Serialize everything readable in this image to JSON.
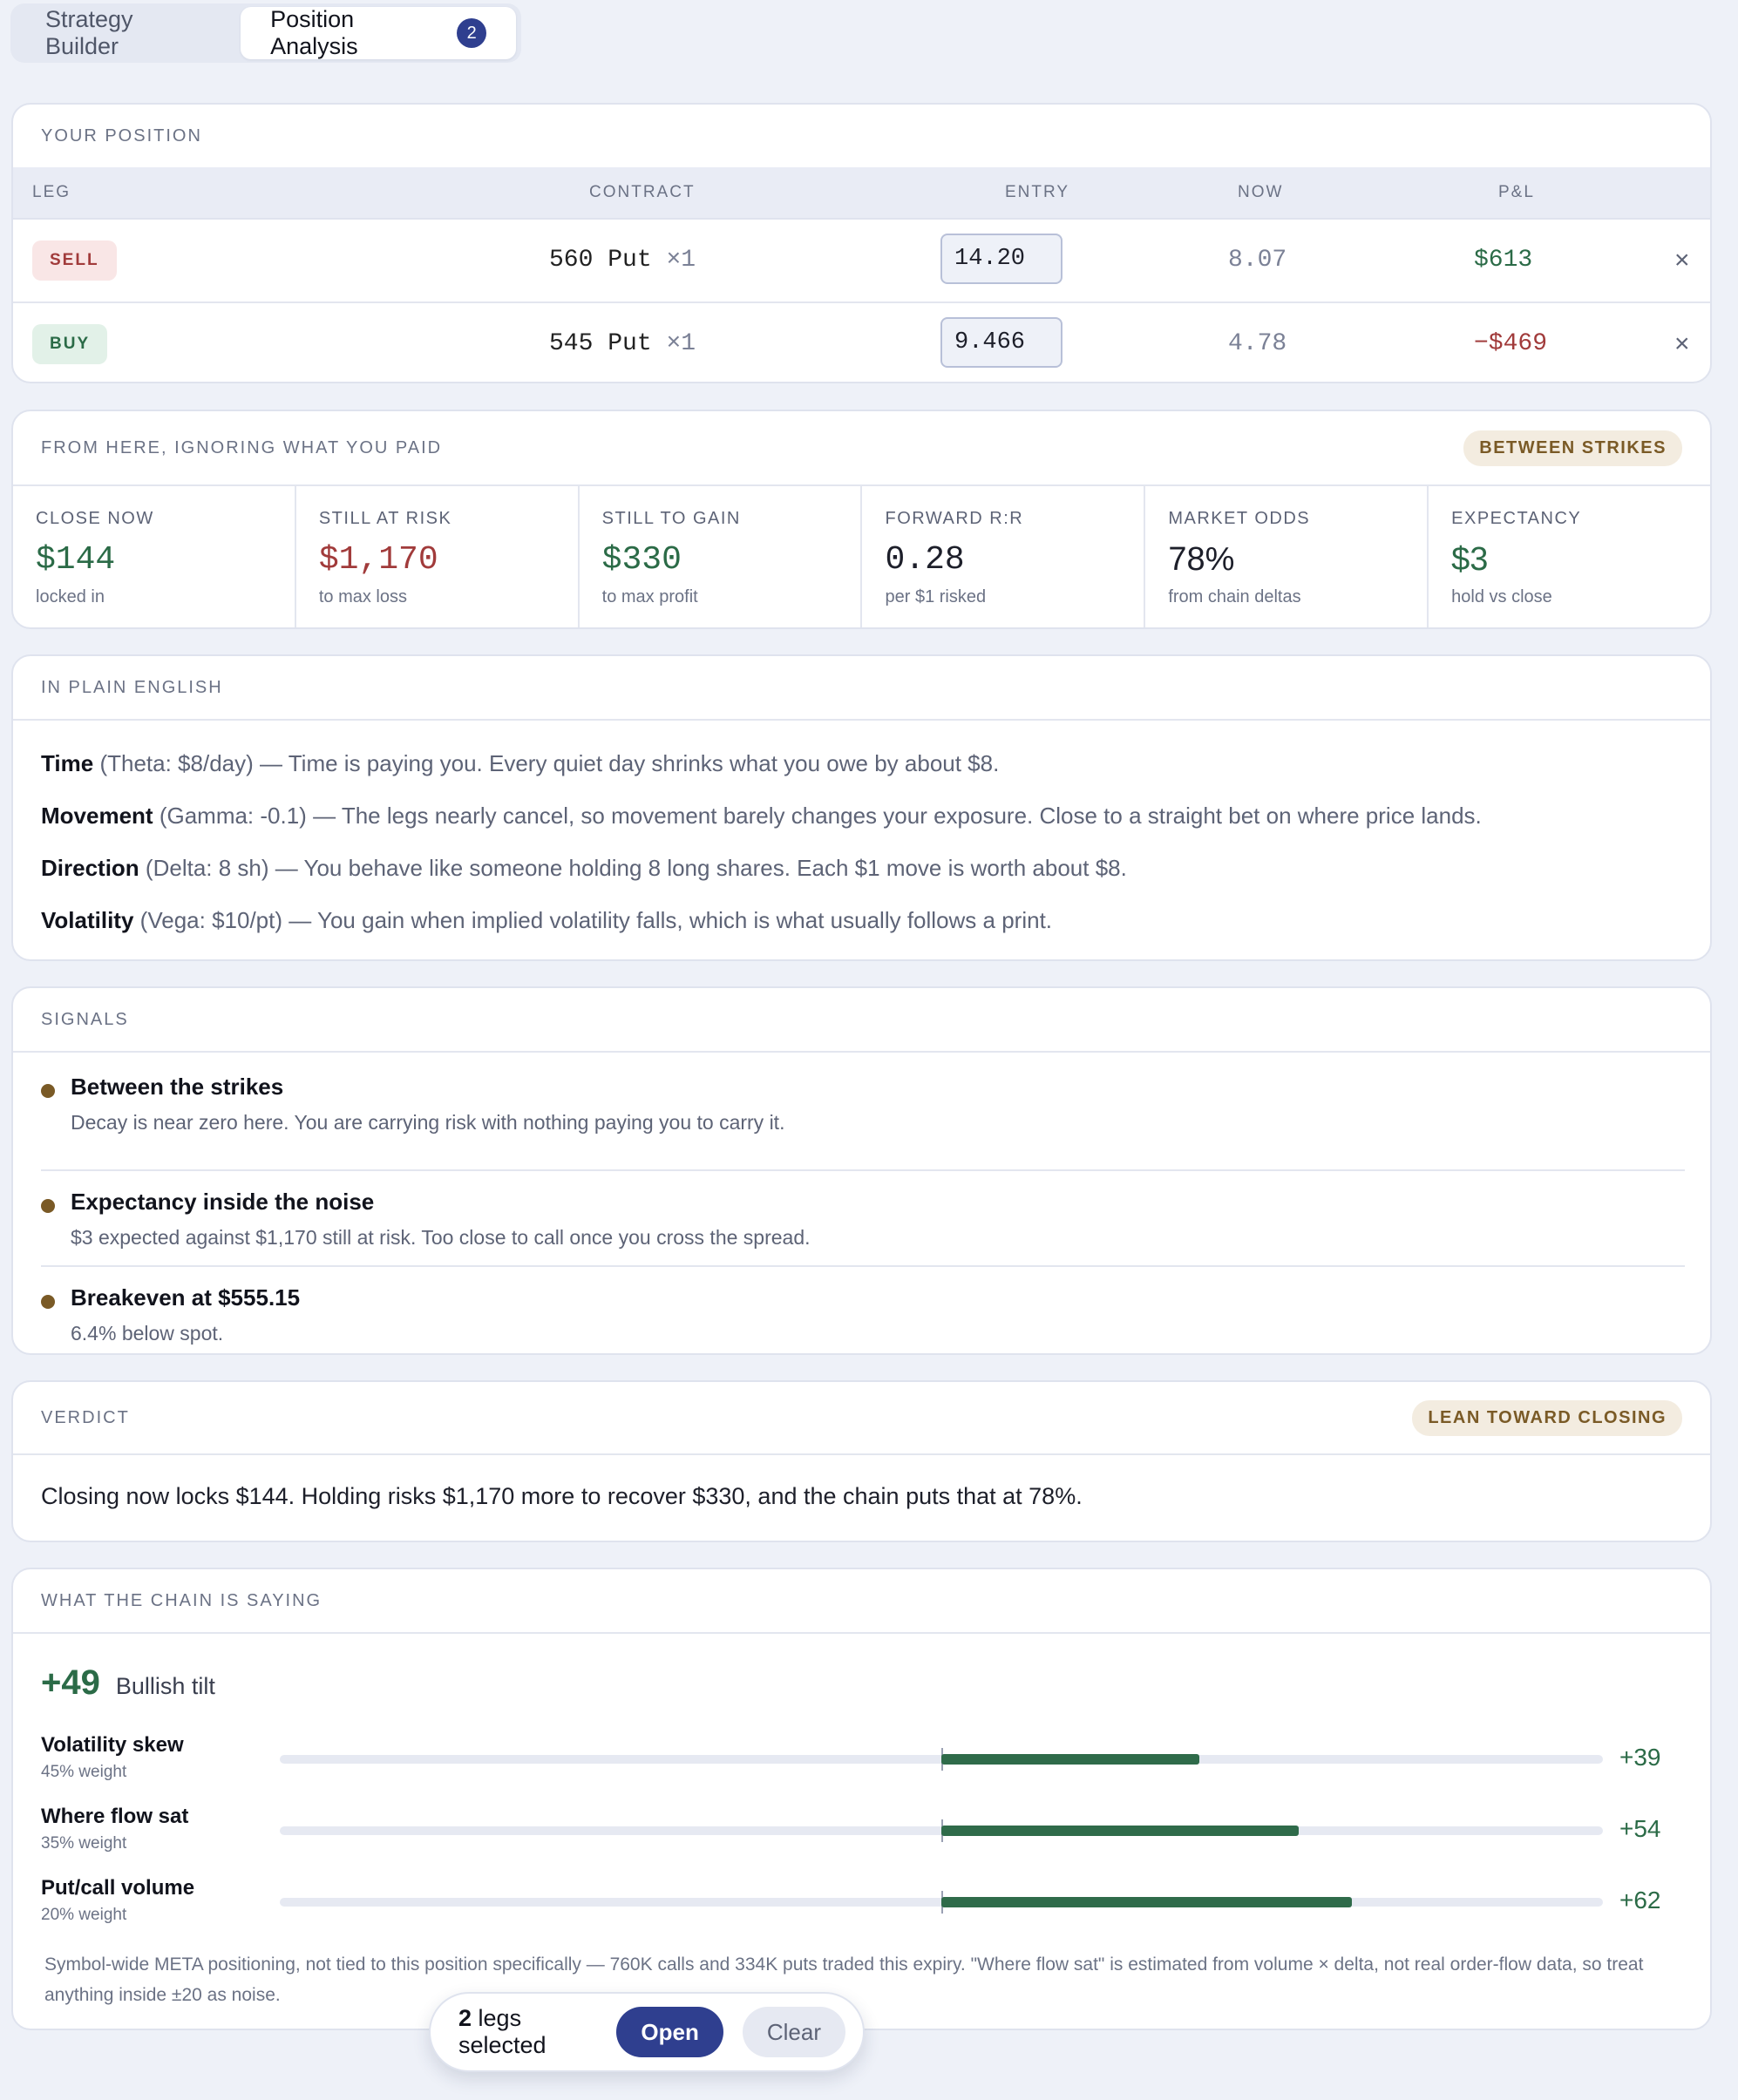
{
  "tabs": [
    {
      "label": "Strategy Builder"
    },
    {
      "label": "Position Analysis",
      "badge": "2"
    }
  ],
  "position": {
    "title": "YOUR POSITION",
    "headers": {
      "leg": "LEG",
      "contract": "CONTRACT",
      "entry": "ENTRY",
      "now": "NOW",
      "pnl": "P&L"
    },
    "rows": [
      {
        "side": "SELL",
        "contract": "560 Put",
        "qty": "×1",
        "entry": "14.20",
        "now": "8.07",
        "pnl": "$613",
        "remove": "×"
      },
      {
        "side": "BUY",
        "contract": "545 Put",
        "qty": "×1",
        "entry": "9.466",
        "now": "4.78",
        "pnl": "−$469",
        "remove": "×"
      }
    ]
  },
  "forward": {
    "title": "FROM HERE, IGNORING WHAT YOU PAID",
    "badge": "BETWEEN STRIKES",
    "metrics": [
      {
        "label": "CLOSE NOW",
        "value": "$144",
        "sub": "locked in",
        "tone": "green"
      },
      {
        "label": "STILL AT RISK",
        "value": "$1,170",
        "sub": "to max loss",
        "tone": "red"
      },
      {
        "label": "STILL TO GAIN",
        "value": "$330",
        "sub": "to max profit",
        "tone": "green"
      },
      {
        "label": "FORWARD R:R",
        "value": "0.28",
        "sub": "per $1 risked",
        "tone": "dark"
      },
      {
        "label": "MARKET ODDS",
        "value": "78%",
        "sub": "from chain deltas",
        "tone": "dark"
      },
      {
        "label": "EXPECTANCY",
        "value": "$3",
        "sub": "hold vs close",
        "tone": "green"
      }
    ]
  },
  "plain": {
    "title": "IN PLAIN ENGLISH",
    "lines": [
      {
        "term": "Time",
        "paren": "(Theta: $8/day)",
        "text": "— Time is paying you. Every quiet day shrinks what you owe by about $8."
      },
      {
        "term": "Movement",
        "paren": "(Gamma: -0.1)",
        "text": "— The legs nearly cancel, so movement barely changes your exposure. Close to a straight bet on where price lands."
      },
      {
        "term": "Direction",
        "paren": "(Delta: 8 sh)",
        "text": "— You behave like someone holding 8 long shares. Each $1 move is worth about $8."
      },
      {
        "term": "Volatility",
        "paren": "(Vega: $10/pt)",
        "text": "— You gain when implied volatility falls, which is what usually follows a print."
      }
    ]
  },
  "signals": {
    "title": "SIGNALS",
    "items": [
      {
        "title": "Between the strikes",
        "desc": "Decay is near zero here. You are carrying risk with nothing paying you to carry it."
      },
      {
        "title": "Expectancy inside the noise",
        "desc": "$3 expected against $1,170 still at risk. Too close to call once you cross the spread."
      },
      {
        "title": "Breakeven at $555.15",
        "desc": "6.4% below spot."
      }
    ]
  },
  "verdict": {
    "title": "VERDICT",
    "badge": "LEAN TOWARD CLOSING",
    "text": "Closing now locks $144. Holding risks $1,170 more to recover $330, and the chain puts that at 78%."
  },
  "chain": {
    "title": "WHAT THE CHAIN IS SAYING",
    "score": "+49",
    "tilt": "Bullish tilt",
    "factors": [
      {
        "name": "Volatility skew",
        "weight": "45% weight",
        "value": "+39",
        "score": 39
      },
      {
        "name": "Where flow sat",
        "weight": "35% weight",
        "value": "+54",
        "score": 54
      },
      {
        "name": "Put/call volume",
        "weight": "20% weight",
        "value": "+62",
        "score": 62
      }
    ],
    "note": "Symbol-wide META positioning, not tied to this position specifically — 760K calls and 334K puts traded this expiry. \"Where flow sat\" is estimated from volume × delta, not real order-flow data, so treat anything inside ±20 as noise."
  },
  "floating": {
    "count": "2",
    "text": "legs selected",
    "open": "Open",
    "clear": "Clear"
  },
  "colors": {
    "accent": "#2f3f8f",
    "positive": "#2b6b47",
    "negative": "#a13b3b",
    "warning": "#7a5a26"
  }
}
